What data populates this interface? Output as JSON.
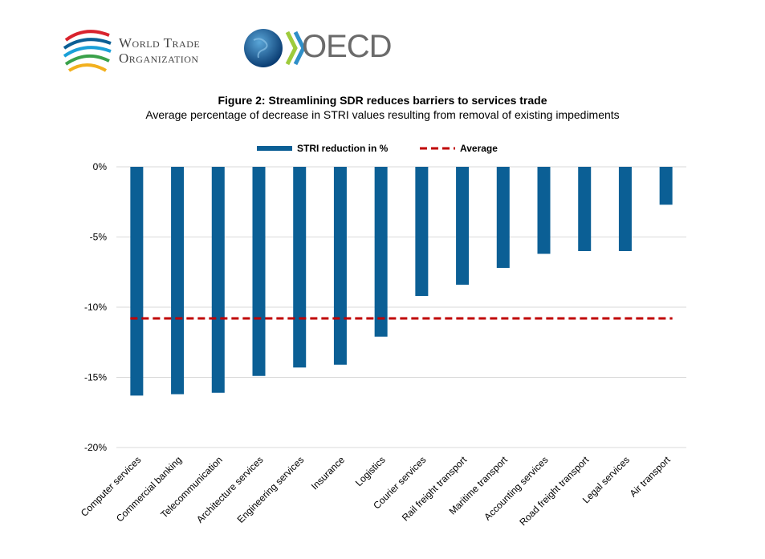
{
  "logos": {
    "wto_line1": "World Trade",
    "wto_line2": "Organization",
    "oecd": "OECD"
  },
  "chart_data": {
    "type": "bar",
    "title": "Figure 2: Streamlining SDR reduces barriers to services trade",
    "subtitle": "Average percentage of decrease in STRI values resulting from removal of existing impediments",
    "xlabel": "",
    "ylabel": "",
    "ylim": [
      -20,
      0
    ],
    "yticks": [
      0,
      -5,
      -10,
      -15,
      -20
    ],
    "ytick_labels": [
      "0%",
      "-5%",
      "-10%",
      "-15%",
      "-20%"
    ],
    "grid": true,
    "legend_position": "top-center",
    "categories": [
      "Computer services",
      "Commercial banking",
      "Telecommunication",
      "Architecture services",
      "Engineering services",
      "Insurance",
      "Logistics",
      "Courier services",
      "Rail freight transport",
      "Maritime transport",
      "Accounting services",
      "Road freight transport",
      "Legal services",
      "Air transport"
    ],
    "series": [
      {
        "name": "STRI reduction in %",
        "type": "bar",
        "color": "#0b5f95",
        "values": [
          -16.3,
          -16.2,
          -16.1,
          -14.9,
          -14.3,
          -14.1,
          -12.1,
          -9.2,
          -8.4,
          -7.2,
          -6.2,
          -6.0,
          -6.0,
          -2.7
        ]
      },
      {
        "name": "Average",
        "type": "line",
        "style": "dashed",
        "color": "#c00000",
        "value": -10.8
      }
    ]
  }
}
